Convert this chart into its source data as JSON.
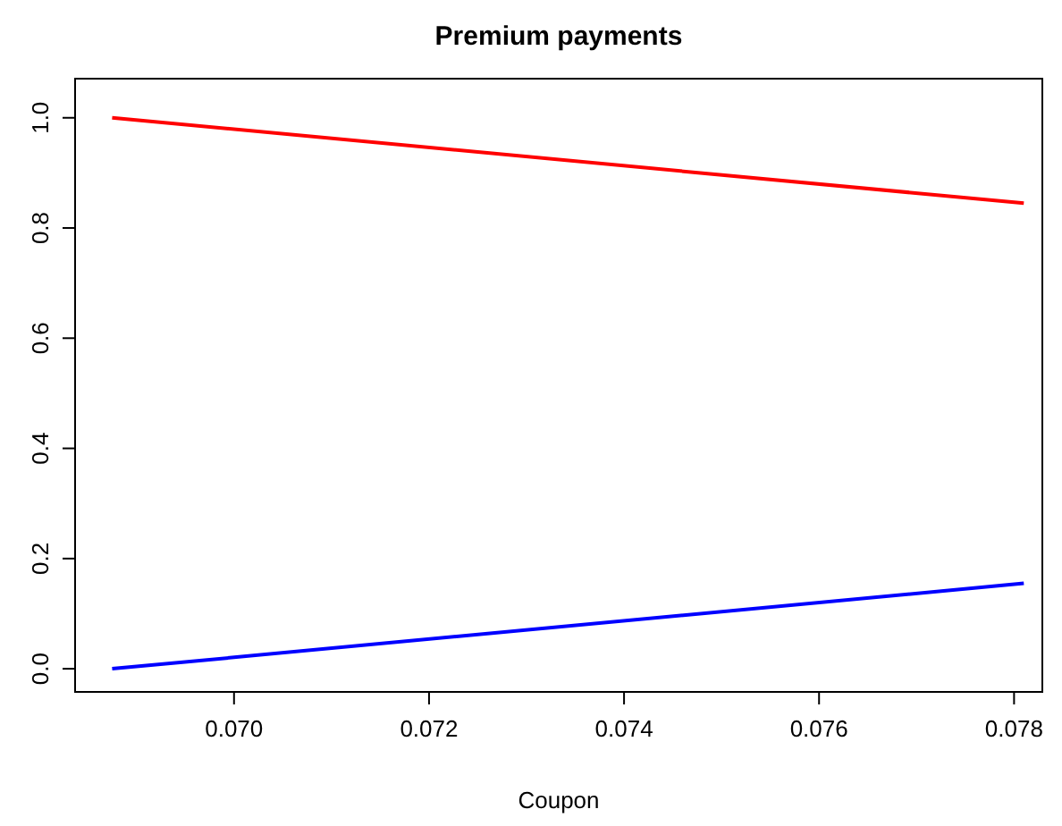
{
  "chart_data": {
    "type": "line",
    "title": "Premium payments",
    "xlabel": "Coupon",
    "x": [
      0.06875,
      0.0781
    ],
    "series": [
      {
        "color": "#ff0000",
        "values": [
          1.0,
          0.845
        ]
      },
      {
        "color": "#0000ff",
        "values": [
          0.0,
          0.155
        ]
      }
    ],
    "xlim": [
      0.06837,
      0.07829
    ],
    "xticks": [
      {
        "value": 0.07,
        "label": "0.070"
      },
      {
        "value": 0.072,
        "label": "0.072"
      },
      {
        "value": 0.074,
        "label": "0.074"
      },
      {
        "value": 0.076,
        "label": "0.076"
      },
      {
        "value": 0.078,
        "label": "0.078"
      }
    ],
    "ylim": [
      -0.042,
      1.071
    ],
    "yticks": [
      {
        "value": 0,
        "label": "0.0"
      },
      {
        "value": 0.2,
        "label": "0.2"
      },
      {
        "value": 0.4,
        "label": "0.4"
      },
      {
        "value": 0.6,
        "label": "0.6"
      },
      {
        "value": 0.8,
        "label": "0.8"
      },
      {
        "value": 1,
        "label": "1.0"
      }
    ],
    "grid": false,
    "marker": "none",
    "line_style": "solid"
  }
}
